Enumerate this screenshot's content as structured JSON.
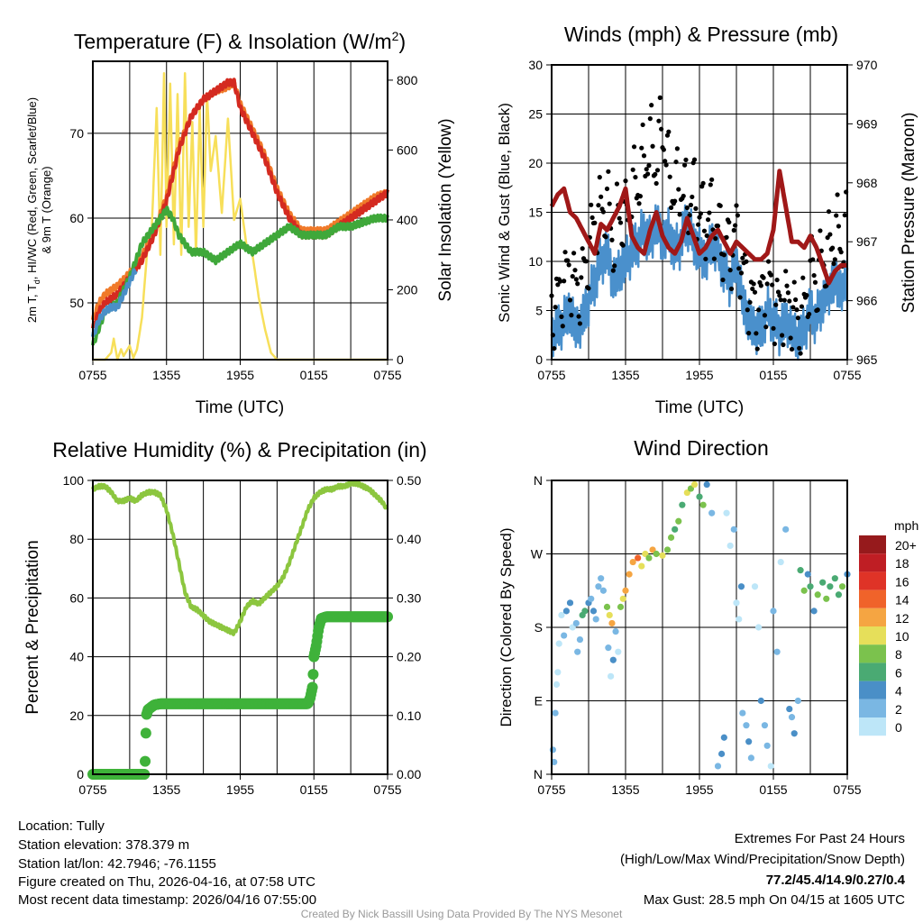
{
  "chart_data": [
    {
      "type": "line",
      "title_main": "Temperature (F) & Insolation (W/m",
      "title_sup": "2",
      "title_end": ")",
      "xlabel": "Time (UTC)",
      "ylabel_line1_a": "2m T, T",
      "ylabel_line1_sub": "d",
      "ylabel_line1_b": ", HI/WC (Red, Green, Scarlet/Blue)",
      "ylabel_line2": "& 9m T (Orange)",
      "y2label": "Solar Insolation (Yellow)",
      "xticks": [
        "0755",
        "1355",
        "1955",
        "0155",
        "0755"
      ],
      "yticks": [
        50,
        60,
        70
      ],
      "y2ticks": [
        0,
        200,
        400,
        600,
        800
      ],
      "ylim": [
        43.3,
        78.5
      ],
      "y2lim": [
        0,
        854
      ],
      "xlim": [
        0,
        24
      ],
      "series": [
        {
          "name": "Solar Insolation",
          "axis": "right",
          "color": "#f7df5a",
          "x": [
            0,
            1,
            1.5,
            1.7,
            2,
            2.3,
            2.5,
            3,
            3.3,
            3.6,
            4,
            4.4,
            4.8,
            5.2,
            5.5,
            5.8,
            6,
            6.3,
            6.6,
            6.9,
            7.2,
            7.5,
            7.8,
            8.1,
            8.4,
            8.7,
            9,
            9.3,
            9.6,
            10,
            10.5,
            11,
            11.5,
            12,
            12.5,
            13,
            13.5,
            14,
            14.5,
            15,
            24
          ],
          "y": [
            0,
            0,
            20,
            60,
            0,
            30,
            10,
            40,
            5,
            30,
            120,
            300,
            380,
            720,
            300,
            820,
            380,
            790,
            330,
            760,
            300,
            820,
            380,
            680,
            300,
            720,
            380,
            760,
            540,
            640,
            420,
            690,
            400,
            460,
            330,
            300,
            180,
            90,
            20,
            0,
            0
          ]
        },
        {
          "name": "9m T",
          "axis": "left",
          "color": "#f07a2a",
          "x": [
            0,
            0.5,
            1,
            2,
            3,
            4,
            5,
            6,
            7,
            8,
            9,
            10,
            11,
            11.5,
            12,
            13,
            14,
            15,
            16,
            17,
            18,
            19,
            20,
            21,
            22,
            23,
            24
          ],
          "y": [
            48,
            50,
            51,
            52,
            53.5,
            55.5,
            58.5,
            62.5,
            68.5,
            72,
            74,
            75,
            75.5,
            76,
            73.5,
            70.5,
            67.5,
            63.5,
            60.5,
            58.5,
            58.5,
            58.5,
            59.5,
            60.5,
            61.5,
            62.5,
            63
          ]
        },
        {
          "name": "2m T",
          "axis": "left",
          "color": "#d42a20",
          "x": [
            0,
            0.5,
            1,
            2,
            3,
            4,
            5,
            6,
            7,
            8,
            9,
            10,
            11,
            11.5,
            12,
            13,
            14,
            15,
            16,
            17,
            18,
            19,
            20,
            21,
            22,
            23,
            24
          ],
          "y": [
            47,
            49,
            50,
            51,
            53,
            55,
            58,
            62,
            68,
            72,
            74,
            75,
            76,
            76,
            73,
            70,
            67,
            63,
            60,
            58,
            58,
            58,
            59,
            60,
            61,
            62,
            63
          ]
        },
        {
          "name": "Dewpoint",
          "axis": "left",
          "color": "#3fa83a",
          "x": [
            0,
            0.5,
            1,
            2,
            3,
            4,
            5,
            6,
            6.5,
            7,
            8,
            9,
            10,
            11,
            12,
            13,
            14,
            15,
            16,
            17,
            18,
            19,
            20,
            21,
            22,
            23,
            24
          ],
          "y": [
            45,
            47,
            49,
            50,
            53,
            57,
            59,
            61,
            60,
            58,
            56,
            56,
            55,
            56,
            57,
            56,
            57,
            58,
            59,
            58,
            58,
            58,
            59,
            59,
            59.5,
            60,
            60
          ]
        },
        {
          "name": "HI/WC",
          "axis": "left",
          "color": "#4a8fc7",
          "x": [
            0,
            0.5,
            1,
            1.5,
            2,
            2.5,
            3,
            3.5
          ],
          "y": [
            46,
            48,
            49,
            49.5,
            49.5,
            51,
            52.5,
            54
          ]
        }
      ]
    },
    {
      "type": "scatter+line",
      "title": "Winds (mph) & Pressure (mb)",
      "xlabel": "Time (UTC)",
      "ylabel": "Sonic Wind & Gust (Blue, Black)",
      "y2label": "Station Pressure (Maroon)",
      "xticks": [
        "0755",
        "1355",
        "1955",
        "0155",
        "0755"
      ],
      "yticks": [
        0,
        5,
        10,
        15,
        20,
        25,
        30
      ],
      "y2ticks": [
        965,
        966,
        967,
        968,
        969,
        970
      ],
      "ylim": [
        0,
        30
      ],
      "y2lim": [
        965,
        970
      ],
      "xlim": [
        0,
        24
      ],
      "x_step_hours": 0.5,
      "wind": [
        3,
        3,
        4,
        5,
        3,
        4,
        6,
        8,
        10,
        11,
        8,
        9,
        10,
        11,
        12,
        13,
        12,
        14,
        12,
        13,
        11,
        12,
        14,
        12,
        11,
        10,
        12,
        11,
        9,
        8,
        10,
        6,
        4,
        3,
        3,
        5,
        4,
        3,
        4,
        3,
        2,
        3,
        5,
        4,
        6,
        7,
        8,
        7,
        8
      ],
      "gust": [
        5,
        6,
        8,
        9,
        7,
        8,
        11,
        14,
        15,
        16,
        12,
        15,
        14,
        17,
        18,
        20,
        22,
        20,
        24,
        19,
        17,
        18,
        16,
        17,
        15,
        14,
        15,
        13,
        12,
        11,
        13,
        9,
        7,
        5,
        6,
        8,
        6,
        5,
        6,
        5,
        4,
        5,
        9,
        8,
        10,
        11,
        13,
        12,
        13
      ],
      "pressure": [
        967.6,
        967.8,
        967.9,
        967.5,
        967.4,
        967.2,
        967.0,
        966.8,
        967.3,
        967.2,
        967.4,
        967.6,
        967.9,
        967.1,
        966.9,
        966.8,
        967.2,
        967.5,
        967.1,
        966.9,
        966.8,
        967.0,
        967.4,
        967.1,
        966.8,
        966.9,
        967.1,
        967.2,
        967.0,
        966.8,
        967.0,
        966.9,
        966.8,
        966.7,
        966.7,
        966.8,
        967.2,
        968.2,
        967.6,
        967.0,
        967.0,
        966.9,
        967.1,
        966.9,
        966.6,
        966.3,
        966.5,
        966.6,
        966.6
      ],
      "colors": {
        "wind": "#4a90cc",
        "gust": "#000000",
        "pressure": "#a01818"
      }
    },
    {
      "type": "line+scatter",
      "title": "Relative Humidity (%) & Precipitation (in)",
      "ylabel": "Percent & Precipitation",
      "xticks": [
        "0755",
        "1355",
        "1955",
        "0155",
        "0755"
      ],
      "yticks": [
        0,
        20,
        40,
        60,
        80,
        100
      ],
      "y2ticks": [
        "0.00",
        "0.10",
        "0.20",
        "0.30",
        "0.40",
        "0.50"
      ],
      "ylim": [
        0,
        100
      ],
      "y2lim": [
        0,
        0.5
      ],
      "xlim": [
        0,
        24
      ],
      "x_step_hours": 0.5,
      "rh": [
        97,
        98,
        98,
        96,
        93,
        93,
        94,
        93,
        95,
        96,
        96,
        95,
        90,
        82,
        72,
        62,
        57,
        56,
        54,
        52,
        51,
        50,
        49,
        48,
        52,
        57,
        59,
        58,
        60,
        62,
        64,
        67,
        72,
        78,
        84,
        90,
        94,
        96,
        97,
        97,
        98,
        98,
        99,
        99,
        98,
        97,
        95,
        93,
        90
      ],
      "precip": {
        "x": [
          0,
          4.2,
          4.25,
          4.3,
          4.35,
          4.5,
          5,
          5.5,
          17.5,
          17.7,
          17.9,
          18.0,
          18.2,
          18.4,
          18.6,
          19,
          24
        ],
        "y": [
          0,
          0,
          0.015,
          0.05,
          0.1,
          0.11,
          0.118,
          0.12,
          0.12,
          0.13,
          0.15,
          0.2,
          0.22,
          0.25,
          0.265,
          0.268,
          0.268
        ]
      },
      "colors": {
        "rh": "#8cc63f",
        "precip": "#3fb23a"
      }
    },
    {
      "type": "scatter",
      "title": "Wind Direction",
      "ylabel": "Direction (Colored By Speed)",
      "xticks": [
        "0755",
        "1355",
        "1955",
        "0155",
        "0755"
      ],
      "yticks": [
        "N",
        "E",
        "S",
        "W",
        "N"
      ],
      "ylim": [
        0,
        360
      ],
      "xlim": [
        0,
        24
      ],
      "legend": {
        "title": "mph",
        "labels": [
          "20+",
          "18",
          "16",
          "14",
          "12",
          "10",
          "8",
          "6",
          "4",
          "2",
          "0"
        ],
        "colors": [
          "#961a1c",
          "#bf1e24",
          "#df3327",
          "#f0632a",
          "#f5a542",
          "#e6df5a",
          "#7bc24d",
          "#4aaa73",
          "#4a8fc7",
          "#7ab7e3",
          "#bde6f8"
        ]
      },
      "points": [
        [
          0.1,
          30,
          3
        ],
        [
          0.2,
          15,
          3
        ],
        [
          0.3,
          75,
          2
        ],
        [
          0.4,
          110,
          1
        ],
        [
          0.5,
          125,
          1
        ],
        [
          0.6,
          160,
          1
        ],
        [
          0.8,
          195,
          1
        ],
        [
          1.0,
          170,
          2
        ],
        [
          1.2,
          200,
          5
        ],
        [
          1.5,
          210,
          5
        ],
        [
          1.7,
          180,
          1
        ],
        [
          2.0,
          185,
          2
        ],
        [
          2.1,
          150,
          2
        ],
        [
          2.3,
          165,
          3
        ],
        [
          2.5,
          195,
          6
        ],
        [
          2.7,
          200,
          7
        ],
        [
          3.0,
          210,
          4
        ],
        [
          3.2,
          215,
          3
        ],
        [
          3.4,
          200,
          4
        ],
        [
          3.6,
          190,
          3
        ],
        [
          3.8,
          230,
          3
        ],
        [
          4.0,
          240,
          2
        ],
        [
          4.2,
          225,
          3
        ],
        [
          4.5,
          205,
          8
        ],
        [
          4.7,
          195,
          11
        ],
        [
          4.9,
          185,
          13
        ],
        [
          5.0,
          140,
          4
        ],
        [
          5.2,
          175,
          2
        ],
        [
          5.4,
          150,
          1
        ],
        [
          4.6,
          155,
          3
        ],
        [
          4.8,
          120,
          1
        ],
        [
          5.6,
          205,
          8
        ],
        [
          5.8,
          215,
          11
        ],
        [
          6.0,
          225,
          12
        ],
        [
          6.3,
          245,
          12
        ],
        [
          6.6,
          260,
          13
        ],
        [
          7.0,
          265,
          14
        ],
        [
          7.3,
          255,
          11
        ],
        [
          7.6,
          270,
          10
        ],
        [
          7.9,
          265,
          9
        ],
        [
          8.2,
          275,
          12
        ],
        [
          8.5,
          270,
          9
        ],
        [
          9.0,
          268,
          10
        ],
        [
          9.4,
          275,
          9
        ],
        [
          9.7,
          290,
          8
        ],
        [
          10.0,
          300,
          7
        ],
        [
          10.3,
          310,
          8
        ],
        [
          10.6,
          330,
          7
        ],
        [
          11.0,
          345,
          10
        ],
        [
          11.3,
          350,
          8
        ],
        [
          11.6,
          355,
          11
        ],
        [
          12.0,
          340,
          6
        ],
        [
          12.3,
          330,
          8
        ],
        [
          12.6,
          355,
          5
        ],
        [
          13.0,
          320,
          2
        ],
        [
          13.5,
          10,
          3
        ],
        [
          13.8,
          25,
          4
        ],
        [
          14.0,
          45,
          4
        ],
        [
          14.2,
          320,
          1
        ],
        [
          14.5,
          280,
          1
        ],
        [
          14.8,
          300,
          2
        ],
        [
          15.0,
          210,
          1
        ],
        [
          15.2,
          190,
          1
        ],
        [
          15.4,
          230,
          4
        ],
        [
          15.5,
          75,
          3
        ],
        [
          15.8,
          60,
          2
        ],
        [
          16.0,
          40,
          4
        ],
        [
          16.2,
          20,
          3
        ],
        [
          16.5,
          230,
          1
        ],
        [
          16.8,
          180,
          0
        ],
        [
          17.0,
          90,
          4
        ],
        [
          17.3,
          60,
          3
        ],
        [
          17.5,
          35,
          2
        ],
        [
          17.8,
          10,
          0
        ],
        [
          18.0,
          200,
          2
        ],
        [
          18.3,
          150,
          2
        ],
        [
          18.6,
          260,
          1
        ],
        [
          19.0,
          300,
          2
        ],
        [
          19.3,
          80,
          4
        ],
        [
          19.5,
          70,
          3
        ],
        [
          19.7,
          50,
          4
        ],
        [
          20.0,
          90,
          3
        ],
        [
          20.2,
          250,
          6
        ],
        [
          20.5,
          225,
          8
        ],
        [
          20.8,
          245,
          5
        ],
        [
          21.0,
          230,
          7
        ],
        [
          21.3,
          200,
          5
        ],
        [
          21.6,
          220,
          8
        ],
        [
          22.0,
          235,
          7
        ],
        [
          22.3,
          215,
          9
        ],
        [
          22.6,
          230,
          6
        ],
        [
          23.0,
          240,
          7
        ],
        [
          23.3,
          220,
          6
        ],
        [
          23.6,
          230,
          8
        ],
        [
          24.0,
          245,
          5
        ]
      ]
    }
  ],
  "info": {
    "location": "Location: Tully",
    "elevation": "Station elevation: 378.379 m",
    "latlon": "Station lat/lon: 42.7946; -76.1155",
    "created": "Figure created on Thu, 2026-04-16, at 07:58 UTC",
    "timestamp": "Most recent data timestamp: 2026/04/16 07:55:00"
  },
  "extremes": {
    "heading": "Extremes For Past 24 Hours",
    "legend": "(High/Low/Max Wind/Precipitation/Snow Depth)",
    "values": "77.2/45.4/14.9/0.27/0.4",
    "values_color": "#c8202a",
    "max_gust": "Max Gust: 28.5 mph On 04/15 at 1605 UTC"
  },
  "credit": "Created By Nick Bassill Using Data Provided By The NYS Mesonet"
}
